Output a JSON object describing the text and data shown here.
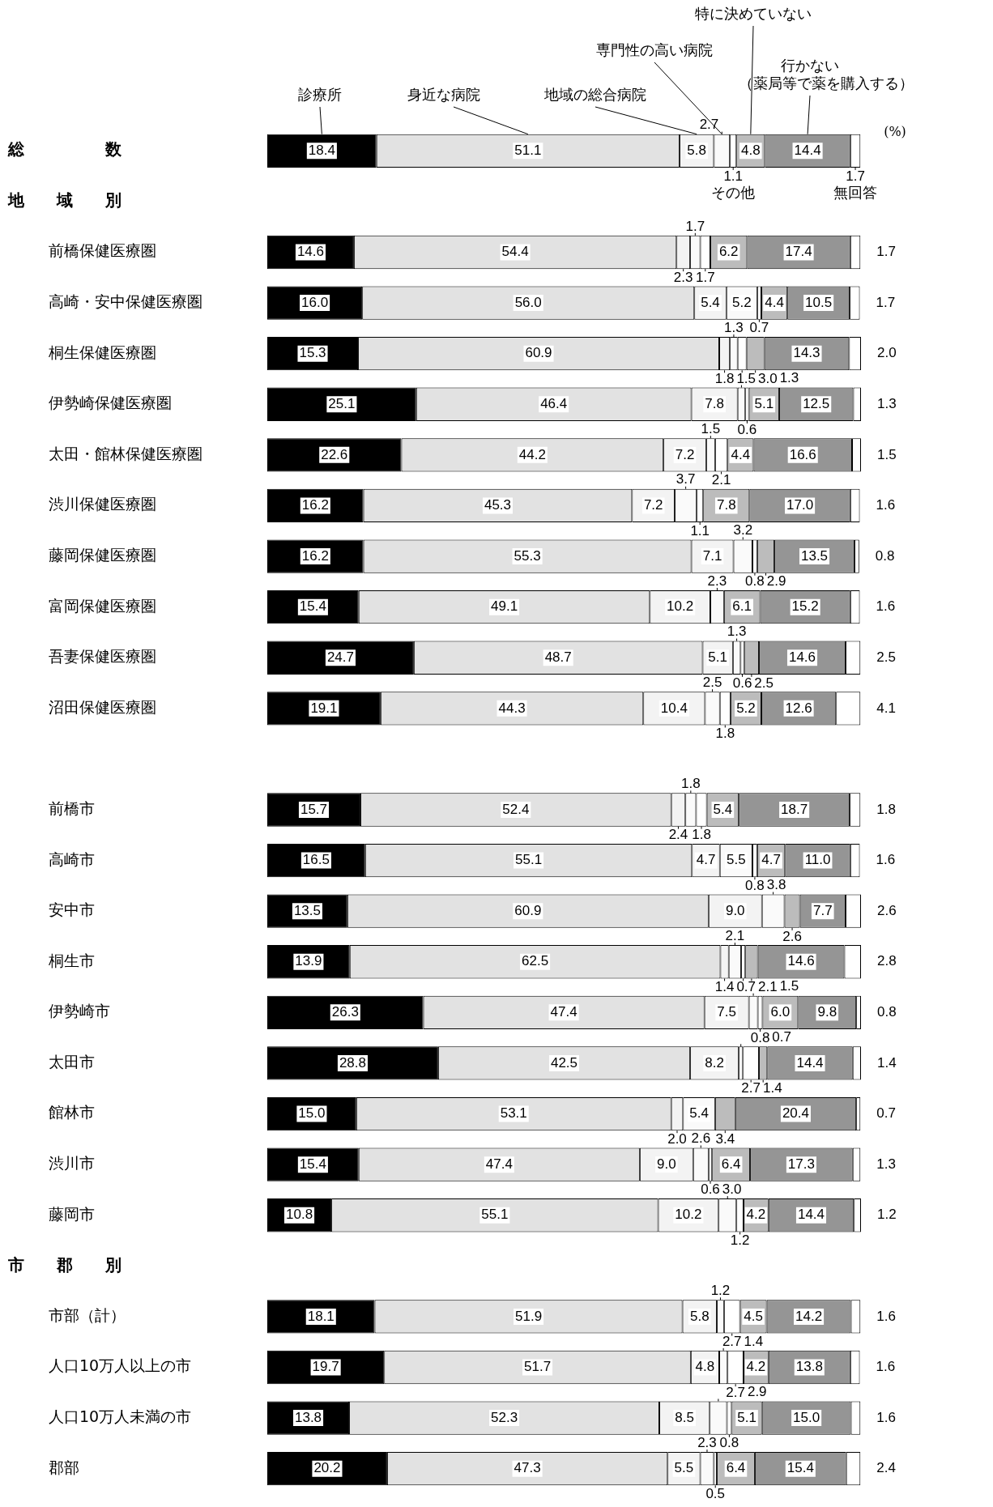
{
  "chart_data": {
    "type": "bar",
    "orientation": "horizontal",
    "stacked": true,
    "legend": false,
    "categories": [
      "総数",
      "地域別",
      "前橋保健医療圏",
      "高崎・安中保健医療圏",
      "桐生保健医療圏",
      "伊勢崎保健医療圏",
      "太田・館林保健医療圏",
      "渋川保健医療圏",
      "藤岡保健医療圏",
      "富岡保健医療圏",
      "吾妻保健医療圏",
      "沼田保健医療圏",
      null,
      "前橋市",
      "高崎市",
      "安中市",
      "桐生市",
      "伊勢崎市",
      "太田市",
      "館林市",
      "渋川市",
      "藤岡市",
      "市郡別",
      "市部（計）",
      "人口10万人以上の市",
      "人口10万人未満の市",
      "郡部"
    ],
    "series": [
      {
        "name": "診療所",
        "color": "#000000",
        "values": [
          18.4,
          null,
          14.6,
          16.0,
          15.3,
          25.1,
          22.6,
          16.2,
          16.2,
          15.4,
          24.7,
          19.1,
          null,
          15.7,
          16.5,
          13.5,
          13.9,
          26.3,
          28.8,
          15.0,
          15.4,
          10.8,
          null,
          18.1,
          19.7,
          13.8,
          20.2
        ],
        "value_labels": [
          "18.4",
          null,
          "14.6",
          "16.0",
          "15.3",
          "25.1",
          "22.6",
          "16.2",
          "16.2",
          "15.4",
          "24.7",
          "19.1",
          null,
          "15.7",
          "16.5",
          "13.5",
          "13.9",
          "26.3",
          "28.8",
          "15.0",
          "15.4",
          "10.8",
          null,
          "18.1",
          "19.7",
          "13.8",
          "20.2"
        ]
      },
      {
        "name": "身近な病院",
        "color": "#e2e2e2",
        "values": [
          51.1,
          null,
          54.4,
          56.0,
          60.9,
          46.4,
          44.2,
          45.3,
          55.3,
          49.1,
          48.7,
          44.3,
          null,
          52.4,
          55.1,
          60.9,
          62.5,
          47.4,
          42.5,
          53.1,
          47.4,
          55.1,
          null,
          51.9,
          51.7,
          52.3,
          47.3
        ],
        "value_labels": [
          "51.1",
          null,
          "54.4",
          "56.0",
          "60.9",
          "46.4",
          "44.2",
          "45.3",
          "55.3",
          "49.1",
          "48.7",
          "44.3",
          null,
          "52.4",
          "55.1",
          "60.9",
          "62.5",
          "47.4",
          "42.5",
          "53.1",
          "47.4",
          "55.1",
          null,
          "51.9",
          "51.7",
          "52.3",
          "47.3"
        ]
      },
      {
        "name": "地域の総合病院",
        "color": "#f3f3f3",
        "values": [
          5.8,
          null,
          2.3,
          5.4,
          1.8,
          7.8,
          7.2,
          7.2,
          7.1,
          10.2,
          5.1,
          10.4,
          null,
          2.4,
          4.7,
          9.0,
          1.4,
          7.5,
          8.2,
          2.0,
          9.0,
          10.2,
          null,
          5.8,
          4.8,
          8.5,
          5.5
        ],
        "value_labels": [
          "5.8",
          null,
          "2.3",
          "5.4",
          "1.8",
          "7.8",
          "7.2",
          "7.2",
          "7.1",
          "10.2",
          "5.1",
          "10.4",
          null,
          "2.4",
          "4.7",
          "9.0",
          "1.4",
          "7.5",
          "8.2",
          "2.0",
          "9.0",
          "10.2",
          null,
          "5.8",
          "4.8",
          "8.5",
          "5.5"
        ]
      },
      {
        "name": "専門性の高い病院",
        "color": "#fafafa",
        "values": [
          2.7,
          null,
          1.7,
          5.2,
          1.3,
          1.3,
          1.5,
          3.7,
          3.2,
          2.3,
          1.3,
          2.5,
          null,
          1.8,
          5.5,
          3.8,
          2.1,
          1.5,
          0.7,
          5.4,
          2.6,
          3.0,
          null,
          1.2,
          1.4,
          2.9,
          2.3
        ],
        "value_labels": [
          "2.7",
          null,
          "1.7",
          "5.2",
          "1.3",
          "1.3",
          "1.5",
          "3.7",
          "3.2",
          "2.3",
          "1.3",
          "2.5",
          null,
          "1.8",
          "5.5",
          "3.8",
          "2.1",
          "1.5",
          "0.7",
          "5.4",
          "2.6",
          "3.0",
          null,
          "1.2",
          "1.4",
          "2.9",
          "2.3"
        ]
      },
      {
        "name": "その他",
        "color": "#ffffff",
        "values": [
          1.1,
          null,
          1.7,
          0.7,
          1.5,
          0.6,
          2.1,
          1.1,
          0.8,
          null,
          0.6,
          1.8,
          null,
          1.8,
          0.8,
          null,
          0.7,
          0.8,
          2.7,
          null,
          0.6,
          1.2,
          null,
          2.7,
          2.7,
          0.8,
          0.5
        ],
        "value_labels": [
          "1.1",
          null,
          "1.7",
          "0.7",
          "1.5",
          "0.6",
          "2.1",
          "1.1",
          "0.8",
          null,
          "0.6",
          "1.8",
          null,
          "1.8",
          "0.8",
          null,
          "0.7",
          "0.8",
          "2.7",
          null,
          "0.6",
          "1.2",
          null,
          "2.7",
          "2.7",
          "0.8",
          "0.5"
        ]
      },
      {
        "name": "特に決めていない",
        "color": "#bcbcbc",
        "values": [
          4.8,
          null,
          6.2,
          4.4,
          3.0,
          5.1,
          4.4,
          7.8,
          2.9,
          6.1,
          2.5,
          5.2,
          null,
          5.4,
          4.7,
          2.6,
          2.1,
          6.0,
          1.4,
          3.4,
          6.4,
          4.2,
          null,
          4.5,
          4.2,
          5.1,
          6.4
        ],
        "value_labels": [
          "4.8",
          null,
          "6.2",
          "4.4",
          "3.0",
          "5.1",
          "4.4",
          "7.8",
          "2.9",
          "6.1",
          "2.5",
          "5.2",
          null,
          "5.4",
          "4.7",
          "2.6",
          "2.1",
          "6.0",
          "1.4",
          "3.4",
          "6.4",
          "4.2",
          null,
          "4.5",
          "4.2",
          "5.1",
          "6.4"
        ]
      },
      {
        "name": "行かない（薬局等で薬を購入する）",
        "color": "#959595",
        "values": [
          14.4,
          null,
          17.4,
          10.5,
          14.3,
          12.5,
          16.6,
          17.0,
          13.5,
          15.2,
          14.6,
          12.6,
          null,
          18.7,
          11.0,
          7.7,
          14.6,
          9.8,
          14.4,
          20.4,
          17.3,
          14.4,
          null,
          14.2,
          13.8,
          15.0,
          15.4
        ],
        "value_labels": [
          "14.4",
          null,
          "17.4",
          "10.5",
          "14.3",
          "12.5",
          "16.6",
          "17.0",
          "13.5",
          "15.2",
          "14.6",
          "12.6",
          null,
          "18.7",
          "11.0",
          "7.7",
          "14.6",
          "9.8",
          "14.4",
          "20.4",
          "17.3",
          "14.4",
          null,
          "14.2",
          "13.8",
          "15.0",
          "15.4"
        ]
      },
      {
        "name": "無回答",
        "color": "#ffffff",
        "values": [
          1.7,
          null,
          1.7,
          1.7,
          2.0,
          1.3,
          1.5,
          1.6,
          0.8,
          1.6,
          2.5,
          4.1,
          null,
          1.8,
          1.6,
          2.6,
          2.8,
          0.8,
          1.4,
          0.7,
          1.3,
          1.2,
          null,
          1.6,
          1.6,
          1.6,
          2.4
        ],
        "value_labels": [
          "1.7",
          null,
          "1.7",
          "1.7",
          "2.0",
          "1.3",
          "1.5",
          "1.6",
          "0.8",
          "1.6",
          "2.5",
          "4.1",
          null,
          "1.8",
          "1.6",
          "2.6",
          "2.8",
          "0.8",
          "1.4",
          "0.7",
          "1.3",
          "1.2",
          null,
          "1.6",
          "1.6",
          "1.6",
          "2.4"
        ]
      }
    ],
    "annotations": [
      "(%)"
    ]
  }
}
